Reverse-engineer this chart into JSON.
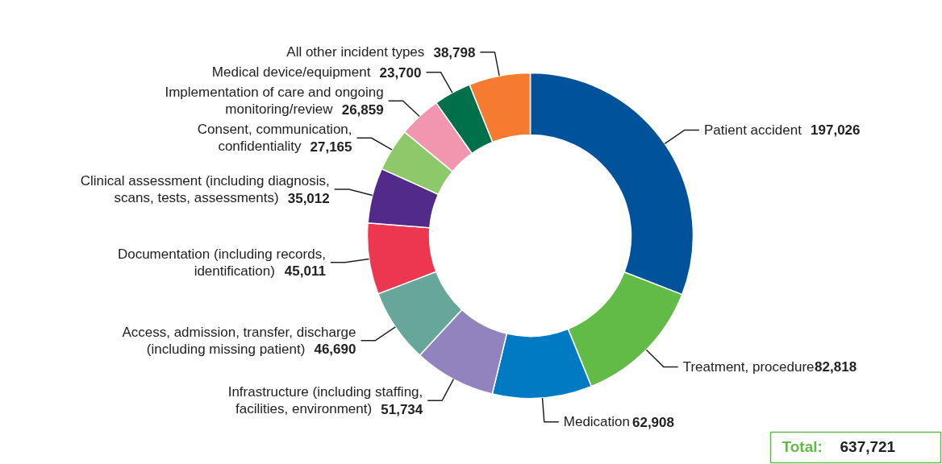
{
  "chart_data": {
    "type": "donut",
    "categories": [
      "Patient accident",
      "Treatment, procedure",
      "Medication",
      "Infrastructure (including staffing,\nfacilities, environment)",
      "Access, admission, transfer, discharge\n(including missing patient)",
      "Documentation (including records,\nidentification)",
      "Clinical assessment (including diagnosis,\nscans, tests, assessments)",
      "Consent, communication,\nconfidentiality",
      "Implementation of care and ongoing\nmonitoring/review",
      "Medical device/equipment",
      "All other incident types"
    ],
    "values": [
      197026,
      82818,
      62908,
      51734,
      46690,
      45011,
      35012,
      27165,
      26859,
      23700,
      38798
    ],
    "colors": [
      "#00529b",
      "#62bb46",
      "#007ac3",
      "#9283be",
      "#66a79a",
      "#ed3650",
      "#512a8a",
      "#8dc96b",
      "#f296b0",
      "#00704a",
      "#f47b2f"
    ],
    "value_labels": [
      "197,026",
      "82,818",
      "62,908",
      "51,734",
      "46,690",
      "45,011",
      "35,012",
      "27,165",
      "26,859",
      "23,700",
      "38,798"
    ],
    "annotations": [
      "Total: 637,721"
    ]
  }
}
